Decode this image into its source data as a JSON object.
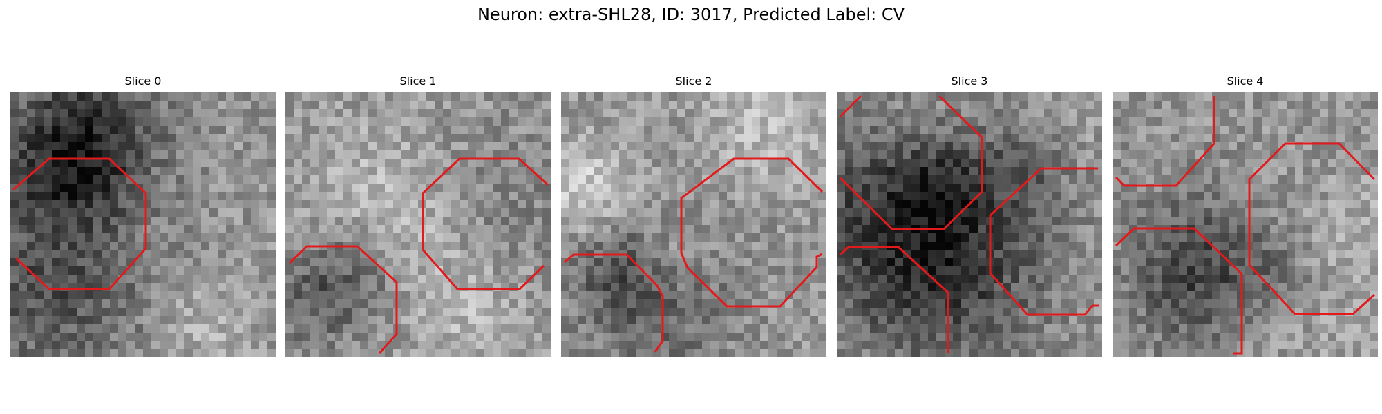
{
  "figure": {
    "title": "Neuron: extra-SHL28, ID: 3017, Predicted Label: CV"
  },
  "colors": {
    "contour": "#e31a1c",
    "background": "#ffffff"
  },
  "panels": [
    {
      "title": "Slice 0",
      "seed": 11
    },
    {
      "title": "Slice 1",
      "seed": 23
    },
    {
      "title": "Slice 2",
      "seed": 37
    },
    {
      "title": "Slice 3",
      "seed": 53
    },
    {
      "title": "Slice 4",
      "seed": 71
    }
  ]
}
